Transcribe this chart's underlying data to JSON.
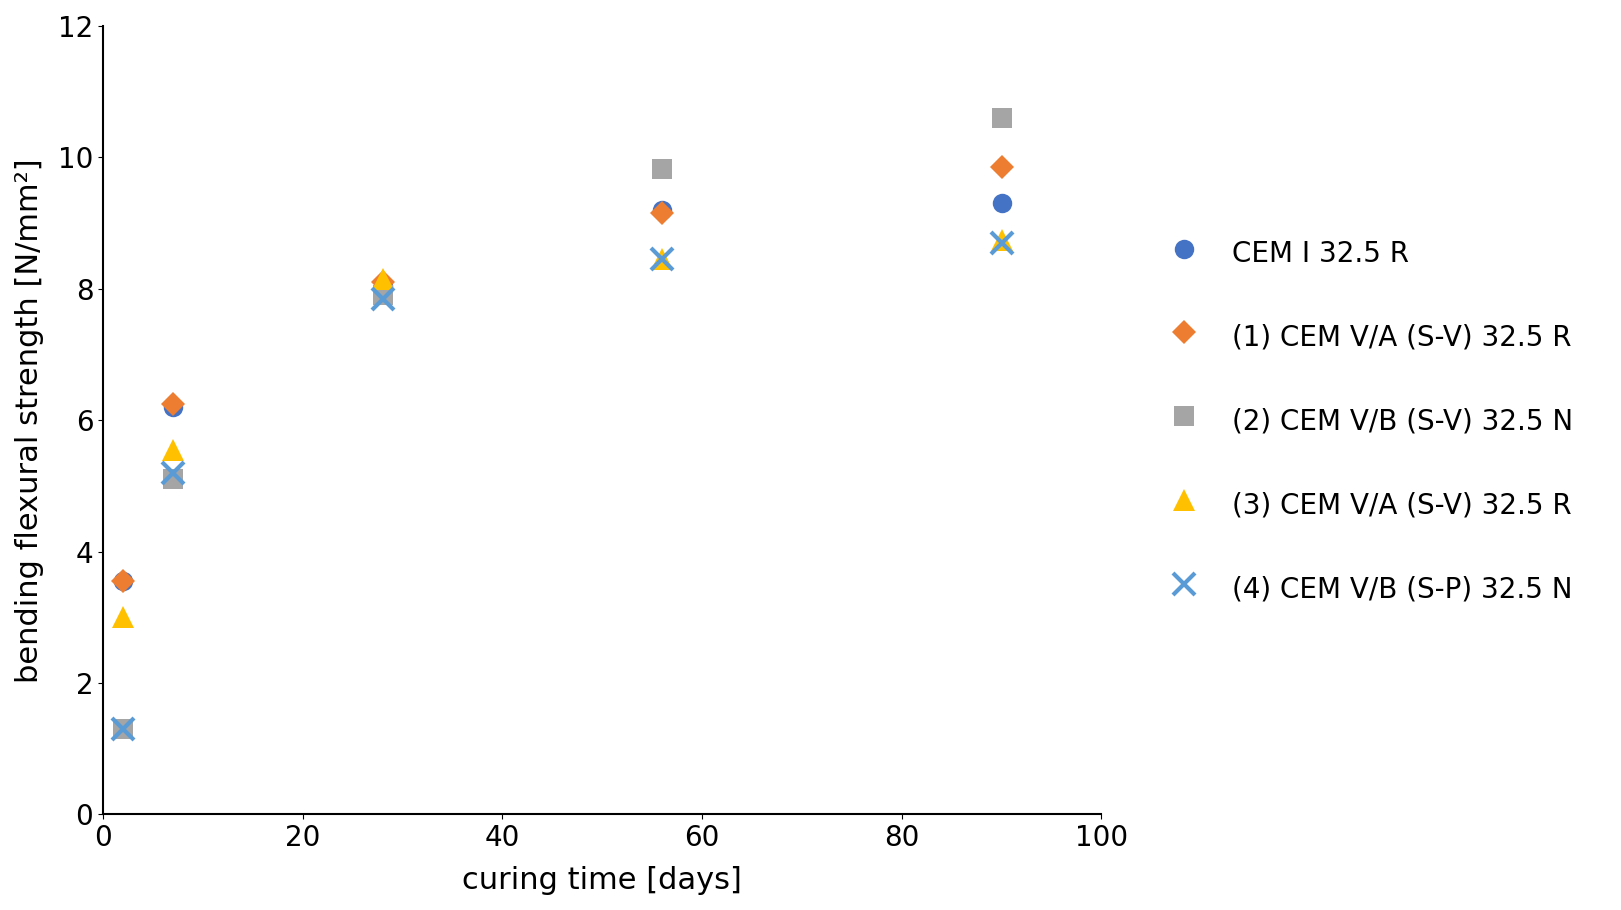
{
  "series": [
    {
      "label": "CEM I 32.5 R",
      "color": "#4472C4",
      "marker": "o",
      "markersize": 14,
      "x": [
        2,
        7,
        28,
        56,
        90
      ],
      "y": [
        3.55,
        6.2,
        8.05,
        9.2,
        9.3
      ]
    },
    {
      "label": "(1) CEM V/A (S-V) 32.5 R",
      "color": "#ED7D31",
      "marker": "D",
      "markersize": 12,
      "x": [
        2,
        7,
        28,
        56,
        90
      ],
      "y": [
        3.55,
        6.25,
        8.1,
        9.15,
        9.85
      ]
    },
    {
      "label": "(2) CEM V/B (S-V) 32.5 N",
      "color": "#A5A5A5",
      "marker": "s",
      "markersize": 14,
      "x": [
        2,
        7,
        28,
        56,
        90
      ],
      "y": [
        1.3,
        5.1,
        7.9,
        9.82,
        10.6
      ]
    },
    {
      "label": "(3) CEM V/A (S-V) 32.5 R",
      "color": "#FFC000",
      "marker": "^",
      "markersize": 16,
      "x": [
        2,
        7,
        28,
        56,
        90
      ],
      "y": [
        3.0,
        5.55,
        8.15,
        8.45,
        8.75
      ]
    },
    {
      "label": "(4) CEM V/B (S-P) 32.5 N",
      "color": "#5B9BD5",
      "marker": "x",
      "markersize": 16,
      "x": [
        2,
        7,
        28,
        56,
        90
      ],
      "y": [
        1.3,
        5.2,
        7.85,
        8.45,
        8.7
      ]
    }
  ],
  "xlabel": "curing time [days]",
  "ylabel": "bending flexural strength [N/mm²]",
  "xlim": [
    0,
    100
  ],
  "ylim": [
    0,
    12
  ],
  "yticks": [
    0,
    2,
    4,
    6,
    8,
    10,
    12
  ],
  "xticks": [
    0,
    20,
    40,
    60,
    80,
    100
  ],
  "background_color": "#FFFFFF",
  "figsize": [
    16.215,
    9.1
  ],
  "dpi": 100,
  "label_fontsize": 22,
  "tick_fontsize": 20,
  "legend_fontsize": 20,
  "linewidth": 2.5
}
